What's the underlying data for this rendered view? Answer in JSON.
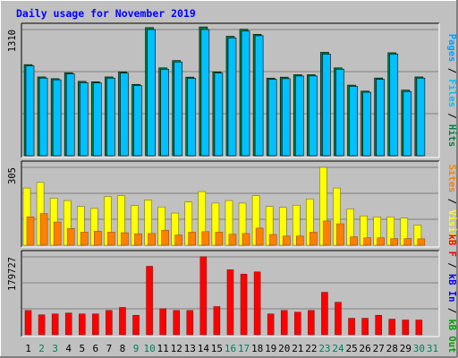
{
  "chart_data": {
    "type": "bar",
    "title": "Daily usage for November 2019",
    "days": [
      1,
      2,
      3,
      4,
      5,
      6,
      7,
      8,
      9,
      10,
      11,
      12,
      13,
      14,
      15,
      16,
      17,
      18,
      19,
      20,
      21,
      22,
      23,
      24,
      25,
      26,
      27,
      28,
      29,
      30,
      31
    ],
    "weekend_days": [
      2,
      3,
      9,
      10,
      16,
      17,
      23,
      24,
      30,
      31
    ],
    "panels": [
      {
        "name": "hits-files-pages",
        "ymax": 1310,
        "ymax_label": "1310",
        "axis_labels": [
          "Pages",
          "Files",
          "Hits"
        ],
        "series": [
          {
            "name": "Hits",
            "color": "#008040",
            "values": [
              946,
              818,
              800,
              862,
              772,
              768,
              818,
              871,
              741,
              1330,
              912,
              988,
              816,
              1337,
              871,
              1240,
              1313,
              1260,
              806,
              816,
              841,
              841,
              1074,
              912,
              733,
              671,
              807,
              1069,
              681,
              818,
              0
            ]
          },
          {
            "name": "Files",
            "color": "#00c0ff",
            "values": [
              933,
              806,
              788,
              850,
              759,
              755,
              806,
              858,
              728,
              1310,
              898,
              974,
              803,
              1310,
              858,
              1223,
              1295,
              1246,
              793,
              800,
              828,
              828,
              1055,
              898,
              720,
              659,
              793,
              1055,
              667,
              806,
              0
            ]
          },
          {
            "name": "Pages",
            "color": "#00a0ff",
            "values": [
              0,
              0,
              0,
              0,
              0,
              0,
              0,
              0,
              0,
              0,
              0,
              0,
              0,
              0,
              0,
              0,
              0,
              0,
              0,
              0,
              0,
              0,
              0,
              0,
              0,
              0,
              0,
              0,
              0,
              0,
              0
            ]
          }
        ]
      },
      {
        "name": "visits-sites",
        "ymax": 305,
        "ymax_label": "305",
        "axis_labels": [
          "Sites",
          "Visits"
        ],
        "series": [
          {
            "name": "Visits",
            "color": "#ffff00",
            "values": [
              224,
              246,
              184,
              175,
              152,
              144,
              190,
              194,
              155,
              177,
              150,
              126,
              169,
              210,
              165,
              175,
              165,
              194,
              152,
              148,
              157,
              181,
              305,
              224,
              142,
              115,
              111,
              111,
              106,
              79,
              0
            ]
          },
          {
            "name": "Sites",
            "color": "#ff8000",
            "values": [
              111,
              124,
              91,
              66,
              51,
              55,
              51,
              49,
              45,
              46,
              59,
              40,
              51,
              53,
              51,
              43,
              46,
              67,
              42,
              36,
              36,
              51,
              95,
              84,
              33,
              29,
              29,
              26,
              26,
              25,
              0
            ]
          }
        ]
      },
      {
        "name": "kb-in-out",
        "ymax": 179727,
        "ymax_label": "179727",
        "axis_labels": [
          "kB F",
          "kB In",
          "kB Out"
        ],
        "series": [
          {
            "name": "kB F",
            "color": "#ff0000",
            "values": [
              56000,
              46000,
              48000,
              50000,
              48000,
              48000,
              56000,
              63000,
              45000,
              158000,
              60000,
              56000,
              56000,
              180000,
              65000,
              150000,
              140000,
              145000,
              48000,
              56000,
              52000,
              56000,
              98000,
              75000,
              38000,
              38000,
              45000,
              36000,
              34000,
              34000,
              0
            ]
          },
          {
            "name": "kB In",
            "color": "#0000ff",
            "values": [
              0,
              0,
              0,
              0,
              0,
              0,
              0,
              0,
              0,
              0,
              0,
              0,
              0,
              0,
              0,
              0,
              0,
              0,
              0,
              0,
              0,
              0,
              0,
              0,
              0,
              0,
              0,
              0,
              0,
              0,
              0
            ]
          },
          {
            "name": "kB Out",
            "color": "#00a000",
            "values": [
              0,
              0,
              0,
              0,
              0,
              0,
              0,
              0,
              0,
              0,
              0,
              0,
              0,
              0,
              0,
              0,
              0,
              0,
              0,
              0,
              0,
              0,
              0,
              0,
              0,
              0,
              0,
              0,
              0,
              0,
              0
            ]
          }
        ]
      }
    ],
    "colors": {
      "title": "#0000ff",
      "weekday_label": "#000000",
      "weekend_label": "#00805c",
      "background": "#c0c0c0",
      "grid": "#808080"
    }
  }
}
